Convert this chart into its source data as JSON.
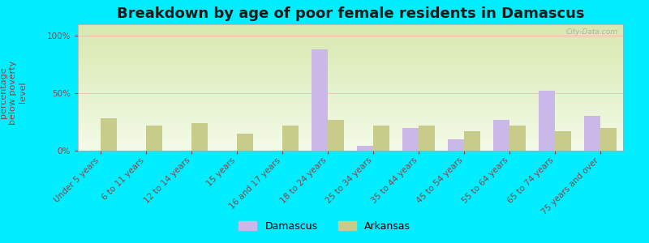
{
  "title": "Breakdown by age of poor female residents in Damascus",
  "ylabel": "percentage\nbelow poverty\nlevel",
  "categories": [
    "Under 5 years",
    "6 to 11 years",
    "12 to 14 years",
    "15 years",
    "16 and 17 years",
    "18 to 24 years",
    "25 to 34 years",
    "35 to 44 years",
    "45 to 54 years",
    "55 to 64 years",
    "65 to 74 years",
    "75 years and over"
  ],
  "damascus": [
    0,
    0,
    0,
    0,
    0,
    88,
    4,
    20,
    10,
    27,
    52,
    30
  ],
  "arkansas": [
    28,
    22,
    24,
    15,
    22,
    27,
    22,
    22,
    17,
    22,
    17,
    20
  ],
  "damascus_color": "#c9b8e8",
  "arkansas_color": "#c8cc8a",
  "background_color": "#00eeff",
  "plot_bg_top": "#d8e8b0",
  "plot_bg_bottom": "#f4fbe8",
  "title_color": "#1a1a1a",
  "ylabel_color": "#8b4444",
  "tick_color": "#8b4444",
  "grid_color": "#f0c0c0",
  "ylim": [
    0,
    110
  ],
  "yticks": [
    0,
    50,
    100
  ],
  "ytick_labels": [
    "0%",
    "50%",
    "100%"
  ],
  "bar_width": 0.35,
  "title_fontsize": 13,
  "label_fontsize": 7.5,
  "ylabel_fontsize": 8,
  "watermark": "City-Data.com"
}
